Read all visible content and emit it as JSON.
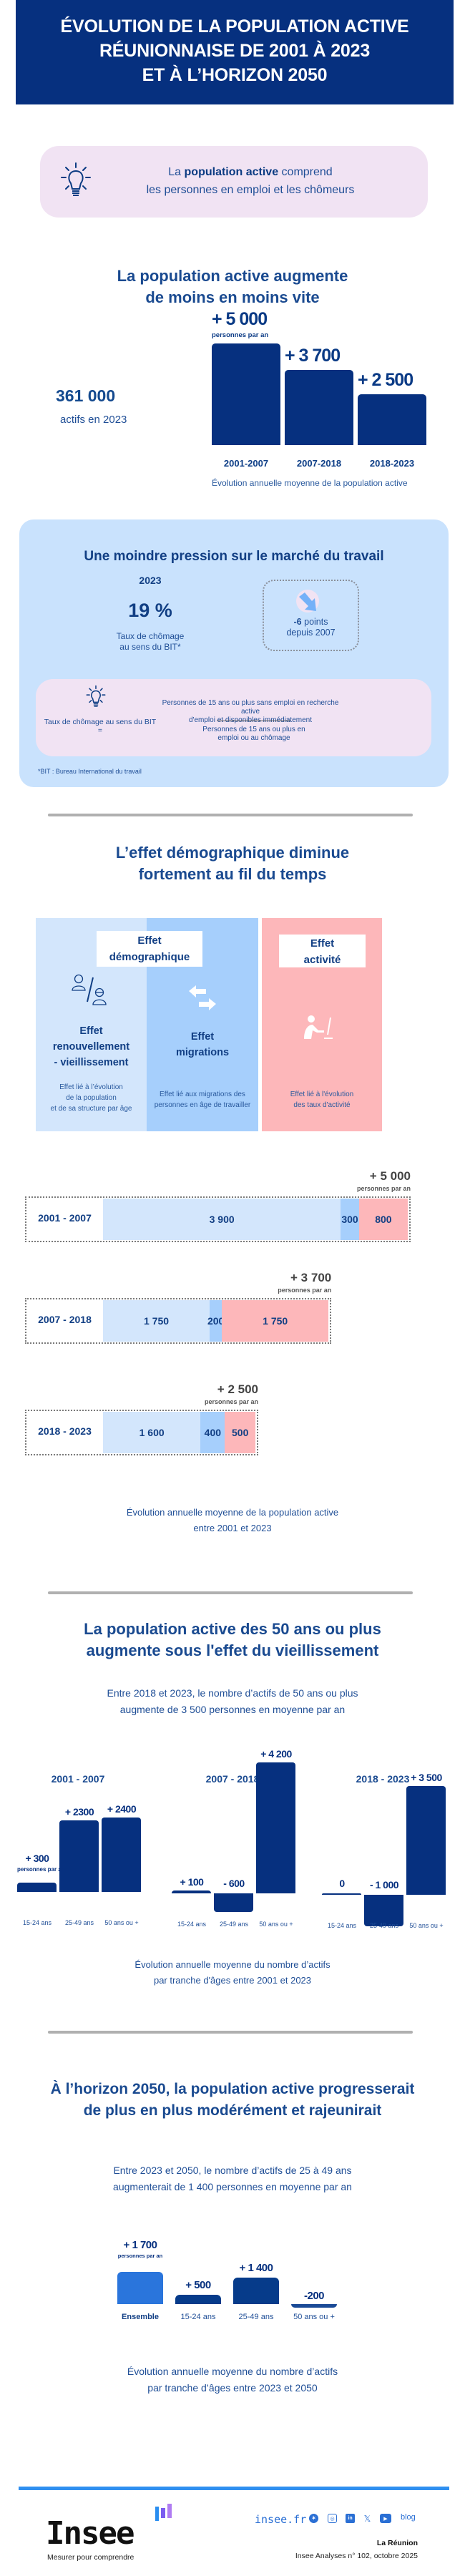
{
  "header": {
    "title_lines": [
      "ÉVOLUTION DE LA POPULATION ACTIVE",
      "RÉUNIONNAISE DE 2001 À 2023",
      "ET À L’HORIZON 2050"
    ]
  },
  "definition": {
    "icon": "lightbulb-icon",
    "prefix": "La ",
    "bold": "population active",
    "suffix": " comprend",
    "line2": "les personnes en emploi et les chômeurs"
  },
  "section1": {
    "title_lines": [
      "La population active augmente",
      "de moins en moins vite"
    ],
    "total_value": "361 000",
    "total_label": "actifs en 2023",
    "unit_label": "personnes par an",
    "caption": "Évolution annuelle moyenne de la population active"
  },
  "unemployment": {
    "title": "Une moindre pression sur le marché du travail",
    "year": "2023",
    "rate": "19 %",
    "rate_label_lines": [
      "Taux de chômage",
      "au sens du BIT*"
    ],
    "change_bold": "-6",
    "change_text": " points",
    "change_since": "depuis 2007",
    "change_icon": "arrow-down-right-icon",
    "formula_label": "Taux de chômage au sens du BIT =",
    "numerator_lines": [
      "Personnes de 15 ans ou plus sans emploi en recherche active",
      "d'emploi et disponibles immédiatement"
    ],
    "denominator_lines": [
      "Personnes de 15 ans ou plus en",
      "emploi ou au chômage"
    ],
    "footnote": "*BIT : Bureau International du travail"
  },
  "section2": {
    "title_lines": [
      "L’effet démographique diminue",
      "fortement au fil du temps"
    ],
    "group_demo_lines": [
      "Effet",
      "démographique"
    ],
    "group_activity_lines": [
      "Effet",
      "activité"
    ],
    "effects": [
      {
        "title_lines": [
          "Effet",
          "renouvellement",
          "- vieillissement"
        ],
        "desc_lines": [
          "Effet lié à l’évolution",
          "de la population",
          "et de sa structure par âge"
        ],
        "icon": "young-old-people-icon"
      },
      {
        "title_lines": [
          "Effet",
          "migrations"
        ],
        "desc_lines": [
          "Effet lié aux migrations des",
          "personnes en âge de travailler"
        ],
        "icon": "swap-arrows-icon"
      },
      {
        "title_lines": [],
        "desc_lines": [
          "Effet lié à l'évolution",
          "des taux d'activité"
        ],
        "icon": "person-at-computer-icon"
      }
    ],
    "unit_label": "personnes par an",
    "caption_lines": [
      "Évolution annuelle moyenne de la population active",
      "entre 2001 et 2023"
    ]
  },
  "section3": {
    "title_lines": [
      "La population active des 50 ans ou plus",
      "augmente sous l'effet du vieillissement"
    ],
    "intro_lines": [
      "Entre 2018 et 2023, le nombre d’actifs de 50 ans ou plus",
      "augmente de 3 500 personnes en moyenne par an"
    ],
    "unit_lines": [
      "personnes",
      "par an"
    ],
    "caption_lines": [
      "Évolution annuelle moyenne du nombre d’actifs",
      "par tranche d'âges entre 2001 et 2023"
    ]
  },
  "section4": {
    "title_lines": [
      "À l’horizon 2050, la population active progresserait",
      "de plus en plus modérément et rajeunirait"
    ],
    "intro_lines": [
      "Entre 2023 et 2050, le nombre d’actifs de 25 à 49 ans",
      "augmenterait de 1 400 personnes en moyenne par an"
    ],
    "unit_lines": [
      "personnes",
      "par an"
    ],
    "caption_lines": [
      "Évolution annuelle moyenne du nombre d’actifs",
      "par tranche d’âges entre 2023 et 2050"
    ]
  },
  "footer": {
    "logo": "Insee",
    "tagline": "Mesurer pour comprendre",
    "site": "insee.fr",
    "social_icons": [
      "bluesky-icon",
      "instagram-icon",
      "linkedin-icon",
      "x-icon",
      "youtube-icon"
    ],
    "blog": "blog",
    "region": "La Réunion",
    "publication": "Insee Analyses  n° 102, octobre 2025"
  },
  "colors": {
    "navy": "#06307f",
    "light_blue": "#d3e6fc",
    "mid_blue": "#a6cffc",
    "pink": "#fdb7ba",
    "panel_blue": "#c9e2fd",
    "lilac": "#f1e3f3",
    "bright_blue": "#2a75dc"
  },
  "chart_data": [
    {
      "type": "bar",
      "title": "Évolution annuelle moyenne de la population active",
      "categories": [
        "2001-2007",
        "2007-2018",
        "2018-2023"
      ],
      "values": [
        5000,
        3700,
        2500
      ],
      "labels": [
        "+ 5 000",
        "+ 3 700",
        "+ 2 500"
      ],
      "unit": "personnes par an",
      "ylim": [
        0,
        5000
      ]
    },
    {
      "type": "bar",
      "stacked": true,
      "orientation": "horizontal",
      "title": "Évolution annuelle moyenne de la population active entre 2001 et 2023",
      "categories": [
        "2001 - 2007",
        "2007 - 2018",
        "2018 - 2023"
      ],
      "totals": [
        5000,
        3700,
        2500
      ],
      "total_labels": [
        "+ 5 000",
        "+ 3 700",
        "+ 2 500"
      ],
      "series": [
        {
          "name": "Effet renouvellement - vieillissement",
          "values": [
            3900,
            1750,
            1600
          ],
          "labels": [
            "3 900",
            "1 750",
            "1 600"
          ]
        },
        {
          "name": "Effet migrations",
          "values": [
            300,
            200,
            400
          ],
          "labels": [
            "300",
            "200",
            "400"
          ]
        },
        {
          "name": "Effet activité",
          "values": [
            800,
            1750,
            500
          ],
          "labels": [
            "800",
            "1 750",
            "500"
          ]
        }
      ]
    },
    {
      "type": "bar",
      "title": "Évolution annuelle moyenne du nombre d’actifs par tranche d'âges entre 2001 et 2023",
      "groups": [
        {
          "period": "2001 - 2007",
          "categories": [
            "15-24 ans",
            "25-49 ans",
            "50 ans ou +"
          ],
          "values": [
            300,
            2300,
            2400
          ],
          "labels": [
            "+ 300",
            "+ 2300",
            "+ 2400"
          ]
        },
        {
          "period": "2007 - 2018",
          "categories": [
            "15-24 ans",
            "25-49 ans",
            "50 ans ou +"
          ],
          "values": [
            100,
            -600,
            4200
          ],
          "labels": [
            "+ 100",
            "- 600",
            "+ 4 200"
          ]
        },
        {
          "period": "2018 - 2023",
          "categories": [
            "15-24 ans",
            "25-49 ans",
            "50 ans ou +"
          ],
          "values": [
            0,
            -1000,
            3500
          ],
          "labels": [
            "0",
            "- 1 000",
            "+ 3 500"
          ]
        }
      ],
      "unit": "personnes par an"
    },
    {
      "type": "bar",
      "title": "Évolution annuelle moyenne du nombre d’actifs par tranche d’âges entre 2023 et 2050",
      "categories": [
        "Ensemble",
        "15-24 ans",
        "25-49 ans",
        "50 ans ou +"
      ],
      "values": [
        1700,
        500,
        1400,
        -200
      ],
      "labels": [
        "+ 1 700",
        "+ 500",
        "+ 1 400",
        "-200"
      ],
      "unit": "personnes par an"
    }
  ]
}
